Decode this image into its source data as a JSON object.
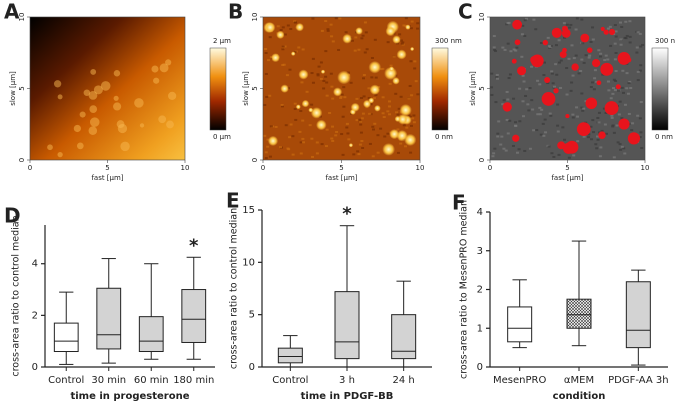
{
  "chart_data": [
    {
      "type": "image",
      "label": "A",
      "xlabel": "fast [µm]",
      "ylabel": "slow [µm]",
      "xlim": [
        0,
        10
      ],
      "ylim": [
        0,
        10
      ],
      "xticks": [
        0,
        5,
        10
      ],
      "yticks": [
        0,
        5,
        10
      ],
      "colorbar_labels": [
        "2 µm",
        "0 µm"
      ],
      "colormap": "afmhot"
    },
    {
      "type": "image",
      "label": "B",
      "xlabel": "fast [µm]",
      "ylabel": "slow [µm]",
      "xlim": [
        0,
        10
      ],
      "ylim": [
        0,
        10
      ],
      "xticks": [
        0,
        5,
        10
      ],
      "yticks": [
        0,
        5,
        10
      ],
      "colorbar_labels": [
        "300 nm",
        "0 nm"
      ],
      "colormap": "afmhot"
    },
    {
      "type": "image",
      "label": "C",
      "xlabel": "fast [µm]",
      "ylabel": "slow [µm]",
      "xlim": [
        0,
        10
      ],
      "ylim": [
        0,
        10
      ],
      "xticks": [
        0,
        5,
        10
      ],
      "yticks": [
        0,
        5,
        10
      ],
      "colorbar_labels": [
        "300 nm",
        "0 nm"
      ],
      "colormap": "gray"
    },
    {
      "type": "box",
      "label": "D",
      "xlabel": "time in progesterone",
      "ylabel": "cross-area ratio to control median",
      "categories": [
        "Control",
        "30 min",
        "60 min",
        "180 min"
      ],
      "boxes": [
        {
          "min": 0.1,
          "q1": 0.6,
          "median": 1.0,
          "q3": 1.7,
          "max": 2.9
        },
        {
          "min": 0.15,
          "q1": 0.7,
          "median": 1.25,
          "q3": 3.05,
          "max": 4.2
        },
        {
          "min": 0.3,
          "q1": 0.6,
          "median": 1.0,
          "q3": 1.95,
          "max": 4.0
        },
        {
          "min": 0.3,
          "q1": 0.95,
          "median": 1.85,
          "q3": 3.0,
          "max": 4.25
        }
      ],
      "colors": [
        "#ffffff",
        "#d3d3d3",
        "#d3d3d3",
        "#d3d3d3"
      ],
      "hatched": [
        false,
        false,
        false,
        false
      ],
      "annotations": [
        {
          "text": "*",
          "category": "180 min"
        }
      ],
      "ylim": [
        0,
        5.5
      ],
      "yticks": [
        0,
        2,
        4
      ]
    },
    {
      "type": "box",
      "label": "E",
      "xlabel": "time in PDGF-BB",
      "ylabel": "cross-area ratio to control median",
      "categories": [
        "Control",
        "3 h",
        "24 h"
      ],
      "boxes": [
        {
          "min": 0,
          "q1": 0.4,
          "median": 1.0,
          "q3": 1.8,
          "max": 3.0
        },
        {
          "min": 0,
          "q1": 0.8,
          "median": 2.4,
          "q3": 7.2,
          "max": 13.5
        },
        {
          "min": 0,
          "q1": 0.8,
          "median": 1.5,
          "q3": 5.0,
          "max": 8.2
        }
      ],
      "colors": [
        "#d3d3d3",
        "#d3d3d3",
        "#d3d3d3"
      ],
      "hatched": [
        false,
        false,
        false
      ],
      "annotations": [
        {
          "text": "*",
          "category": "3 h"
        }
      ],
      "ylim": [
        0,
        15
      ],
      "yticks": [
        0,
        5,
        10,
        15
      ]
    },
    {
      "type": "box",
      "label": "F",
      "xlabel": "condition",
      "ylabel": "cross-area ratio to MesenPRO median",
      "categories": [
        "MesenPRO",
        "αMEM",
        "PDGF-AA 3h"
      ],
      "boxes": [
        {
          "min": 0.5,
          "q1": 0.65,
          "median": 1.0,
          "q3": 1.55,
          "max": 2.25
        },
        {
          "min": 0.55,
          "q1": 1.0,
          "median": 1.35,
          "q3": 1.75,
          "max": 3.25
        },
        {
          "min": 0.05,
          "q1": 0.5,
          "median": 0.95,
          "q3": 2.2,
          "max": 2.5
        }
      ],
      "colors": [
        "#ffffff",
        "#d3d3d3",
        "#d3d3d3"
      ],
      "hatched": [
        false,
        true,
        false
      ],
      "annotations": [],
      "ylim": [
        0,
        4
      ],
      "yticks": [
        0,
        1,
        2,
        3,
        4
      ]
    }
  ]
}
